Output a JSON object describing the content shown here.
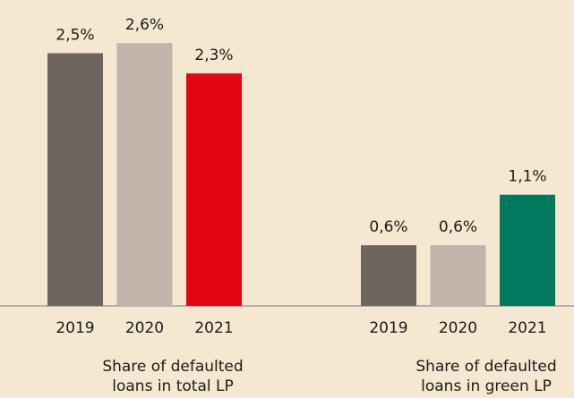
{
  "chart_data": [
    {
      "type": "bar",
      "categories": [
        "2019",
        "2020",
        "2021"
      ],
      "values": [
        2.5,
        2.6,
        2.3
      ],
      "value_labels": [
        "2,5%",
        "2,6%",
        "2,3%"
      ],
      "colors": [
        "#6e6460",
        "#c4b3aa",
        "#e30613"
      ],
      "xlabel": "Share of defaulted loans in total LP"
    },
    {
      "type": "bar",
      "categories": [
        "2019",
        "2020",
        "2021"
      ],
      "values": [
        0.6,
        0.6,
        1.1
      ],
      "value_labels": [
        "0,6%",
        "0,6%",
        "1,1%"
      ],
      "colors": [
        "#6e6460",
        "#c4b3aa",
        "#007a5e"
      ],
      "xlabel": "Share of defaulted loans in green LP"
    }
  ]
}
